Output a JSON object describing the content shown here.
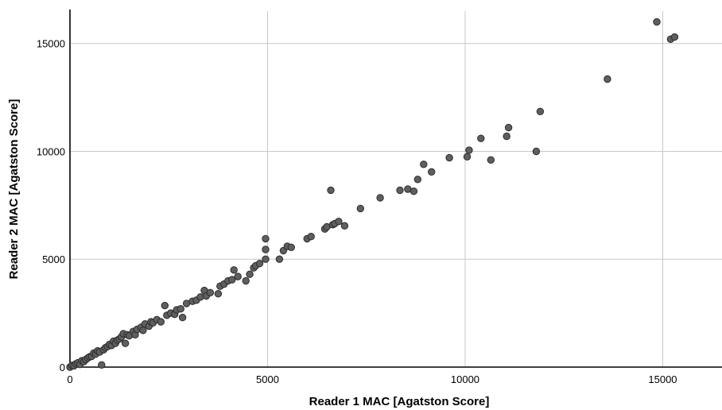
{
  "chart_data": {
    "type": "scatter",
    "xlabel": "Reader 1 MAC [Agatston Score]",
    "ylabel": "Reader 2 MAC [Agatston Score]",
    "xlim": [
      0,
      16500
    ],
    "ylim": [
      0,
      16500
    ],
    "x_ticks": [
      0,
      5000,
      10000,
      15000
    ],
    "y_ticks": [
      0,
      5000,
      10000,
      15000
    ],
    "x_tick_labels": [
      "0",
      "5000",
      "10000",
      "15000"
    ],
    "y_tick_labels": [
      "0",
      "5000",
      "10000",
      "15000"
    ],
    "grid": true,
    "marker_color": "#5f5f5f",
    "series": [
      {
        "points": [
          [
            0,
            0
          ],
          [
            50,
            80
          ],
          [
            100,
            60
          ],
          [
            150,
            150
          ],
          [
            200,
            200
          ],
          [
            250,
            120
          ],
          [
            300,
            300
          ],
          [
            350,
            250
          ],
          [
            400,
            350
          ],
          [
            450,
            420
          ],
          [
            500,
            480
          ],
          [
            550,
            500
          ],
          [
            600,
            650
          ],
          [
            650,
            600
          ],
          [
            700,
            750
          ],
          [
            750,
            700
          ],
          [
            800,
            100
          ],
          [
            850,
            800
          ],
          [
            900,
            900
          ],
          [
            950,
            950
          ],
          [
            1000,
            1050
          ],
          [
            1050,
            1000
          ],
          [
            1100,
            1200
          ],
          [
            1150,
            1100
          ],
          [
            1200,
            1250
          ],
          [
            1250,
            1300
          ],
          [
            1300,
            1400
          ],
          [
            1350,
            1550
          ],
          [
            1400,
            1100
          ],
          [
            1450,
            1500
          ],
          [
            1500,
            1450
          ],
          [
            1600,
            1650
          ],
          [
            1650,
            1500
          ],
          [
            1700,
            1750
          ],
          [
            1800,
            1850
          ],
          [
            1850,
            1700
          ],
          [
            1900,
            2000
          ],
          [
            2000,
            1900
          ],
          [
            2050,
            2100
          ],
          [
            2100,
            2050
          ],
          [
            2200,
            2200
          ],
          [
            2300,
            2100
          ],
          [
            2400,
            2850
          ],
          [
            2450,
            2400
          ],
          [
            2550,
            2500
          ],
          [
            2650,
            2450
          ],
          [
            2700,
            2650
          ],
          [
            2800,
            2700
          ],
          [
            2850,
            2300
          ],
          [
            2950,
            2950
          ],
          [
            3100,
            3050
          ],
          [
            3200,
            3100
          ],
          [
            3300,
            3250
          ],
          [
            3400,
            3550
          ],
          [
            3450,
            3300
          ],
          [
            3550,
            3450
          ],
          [
            3750,
            3400
          ],
          [
            3800,
            3750
          ],
          [
            3900,
            3850
          ],
          [
            4000,
            4000
          ],
          [
            4100,
            4050
          ],
          [
            4150,
            4500
          ],
          [
            4250,
            4200
          ],
          [
            4450,
            4000
          ],
          [
            4550,
            4300
          ],
          [
            4650,
            4600
          ],
          [
            4700,
            4700
          ],
          [
            4800,
            4800
          ],
          [
            4950,
            5000
          ],
          [
            4950,
            5450
          ],
          [
            4950,
            5950
          ],
          [
            5300,
            5000
          ],
          [
            5400,
            5400
          ],
          [
            5500,
            5600
          ],
          [
            5600,
            5550
          ],
          [
            6000,
            5950
          ],
          [
            6100,
            6050
          ],
          [
            6450,
            6400
          ],
          [
            6500,
            6500
          ],
          [
            6600,
            8200
          ],
          [
            6650,
            6600
          ],
          [
            6700,
            6650
          ],
          [
            6800,
            6750
          ],
          [
            6950,
            6550
          ],
          [
            7350,
            7350
          ],
          [
            7850,
            7850
          ],
          [
            8350,
            8200
          ],
          [
            8550,
            8250
          ],
          [
            8700,
            8150
          ],
          [
            8800,
            8700
          ],
          [
            8950,
            9400
          ],
          [
            9150,
            9050
          ],
          [
            9600,
            9700
          ],
          [
            10050,
            9750
          ],
          [
            10100,
            10050
          ],
          [
            10400,
            10600
          ],
          [
            10650,
            9600
          ],
          [
            11050,
            10700
          ],
          [
            11100,
            11100
          ],
          [
            11800,
            10000
          ],
          [
            11900,
            11850
          ],
          [
            13600,
            13350
          ],
          [
            14850,
            16000
          ],
          [
            15200,
            15200
          ],
          [
            15300,
            15300
          ]
        ]
      }
    ]
  }
}
